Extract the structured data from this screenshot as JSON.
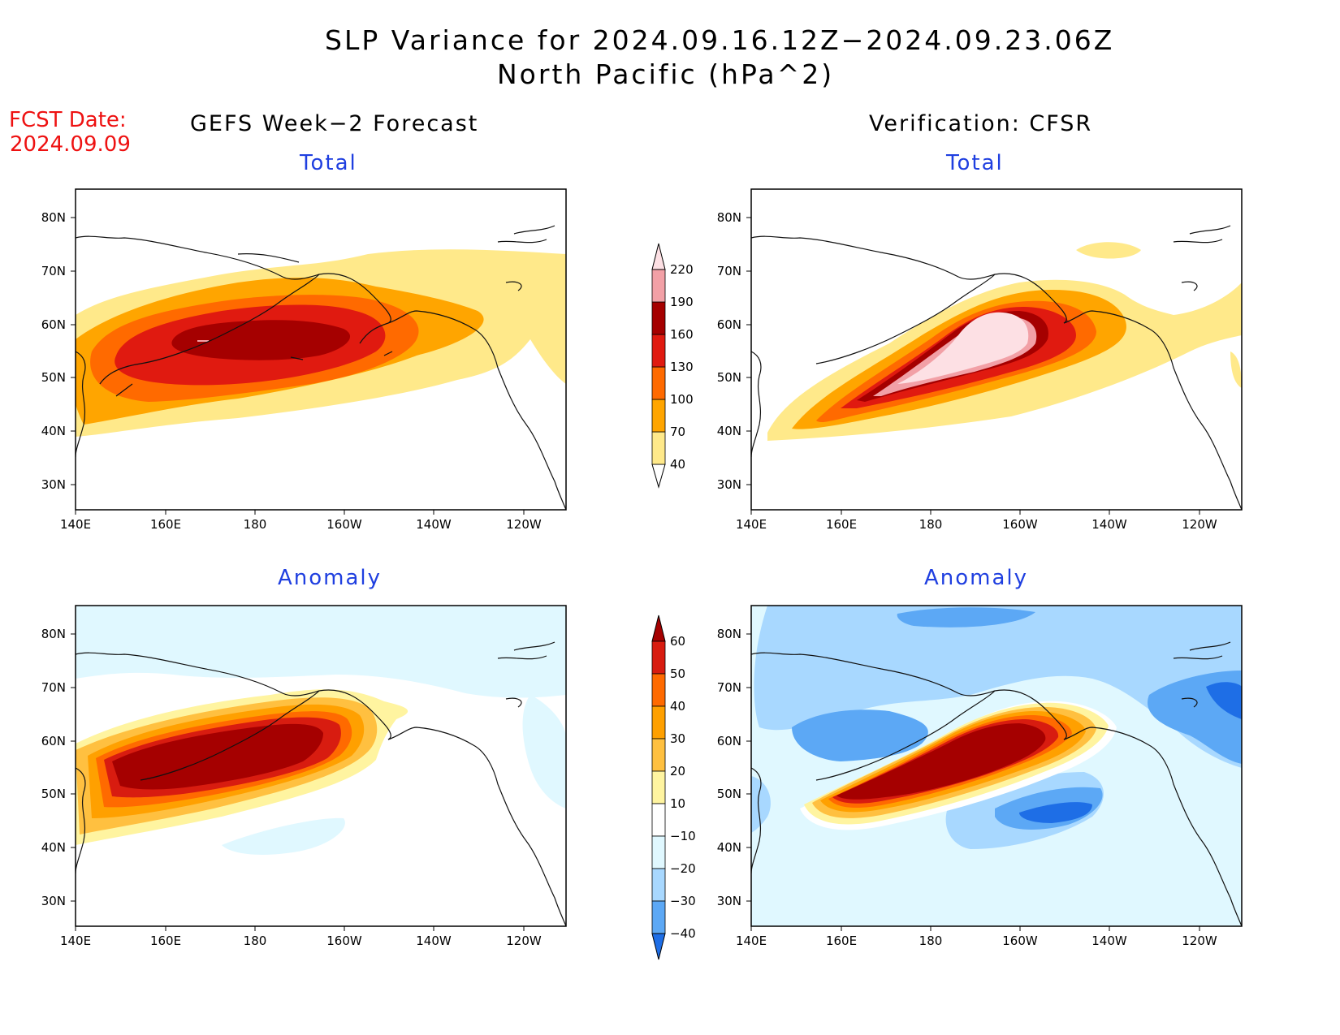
{
  "title": {
    "line1": "SLP Variance for 2024.09.16.12Z−2024.09.23.06Z",
    "line2": "North Pacific (hPa^2)"
  },
  "forecast_date": {
    "label": "FCST Date:",
    "value": "2024.09.09"
  },
  "columns": {
    "left": "GEFS Week−2 Forecast",
    "right": "Verification: CFSR"
  },
  "panel_titles": {
    "total_left": "Total",
    "total_right": "Total",
    "anom_left": "Anomaly",
    "anom_right": "Anomaly"
  },
  "axes": {
    "lat_labels": [
      "80N",
      "70N",
      "60N",
      "50N",
      "40N",
      "30N"
    ],
    "lon_labels": [
      "140E",
      "160E",
      "180",
      "160W",
      "140W",
      "120W"
    ]
  },
  "colorbar_total": {
    "levels": [
      "40",
      "70",
      "100",
      "130",
      "160",
      "190",
      "220"
    ],
    "colors": [
      "#ffe98a",
      "#ffa500",
      "#ff6a00",
      "#e01a10",
      "#a50000",
      "#f2a0a6",
      "#fde0e4"
    ]
  },
  "colorbar_anom": {
    "levels": [
      "60",
      "50",
      "40",
      "30",
      "20",
      "10",
      "−10",
      "−20",
      "−30",
      "−40"
    ],
    "colors": [
      "#a50000",
      "#d81c10",
      "#ff6a00",
      "#ffa000",
      "#ffc040",
      "#fff4a0",
      "#ffffff",
      "#e0f8ff",
      "#a8d8ff",
      "#5ca8f5",
      "#1e6ee6"
    ]
  },
  "colors": {
    "title_blue": "#1f3fe0",
    "fcst_red": "#ee1111"
  }
}
